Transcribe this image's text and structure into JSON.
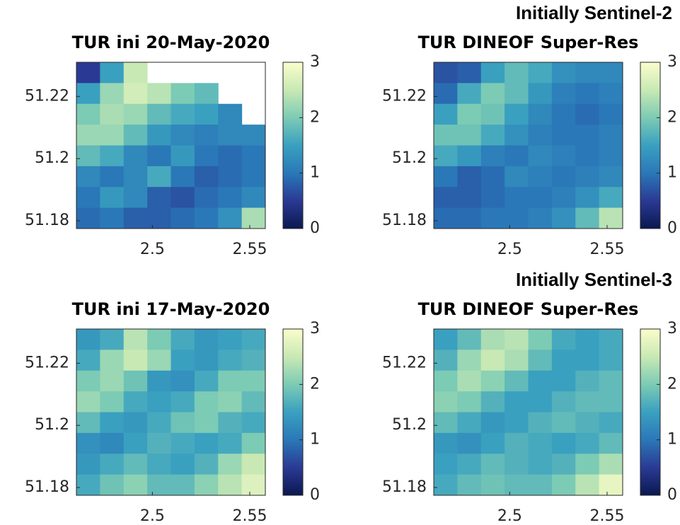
{
  "chart_data": [
    {
      "type": "heatmap",
      "title": "TUR ini 20-May-2020",
      "xlim": [
        2.461,
        2.558
      ],
      "ylim": [
        51.1775,
        51.231
      ],
      "xticks": [
        2.5,
        2.55
      ],
      "yticks": [
        51.18,
        51.2,
        51.22
      ],
      "clim": [
        0,
        3
      ],
      "cticks": [
        0,
        1,
        2,
        3
      ],
      "colormap": [
        "#0b1850",
        "#2a3a94",
        "#2a78b8",
        "#3aa0c0",
        "#7ccbb4",
        "#c8e9b4",
        "#fbfdcc"
      ],
      "values": [
        [
          0.5,
          1.5,
          2.5,
          null,
          null,
          null,
          null,
          null
        ],
        [
          1.5,
          2.2,
          2.6,
          2.4,
          2.0,
          1.8,
          null,
          null
        ],
        [
          2.0,
          2.3,
          2.2,
          1.8,
          1.6,
          1.5,
          1.2,
          null
        ],
        [
          2.2,
          2.2,
          1.8,
          1.4,
          1.2,
          1.1,
          1.2,
          1.2
        ],
        [
          1.8,
          1.6,
          1.2,
          1.0,
          1.4,
          1.0,
          0.9,
          1.0
        ],
        [
          1.2,
          1.0,
          1.2,
          1.6,
          1.0,
          0.8,
          0.9,
          1.0
        ],
        [
          1.0,
          1.4,
          1.2,
          0.8,
          0.7,
          0.9,
          1.0,
          1.2
        ],
        [
          0.9,
          1.0,
          0.8,
          0.8,
          0.9,
          1.0,
          1.3,
          2.3
        ]
      ]
    },
    {
      "type": "heatmap",
      "title": "TUR DINEOF Super-Res",
      "annotation": "Initially Sentinel-2",
      "xlim": [
        2.461,
        2.558
      ],
      "ylim": [
        51.1775,
        51.231
      ],
      "xticks": [
        2.5,
        2.55
      ],
      "yticks": [
        51.18,
        51.2,
        51.22
      ],
      "clim": [
        0,
        3
      ],
      "cticks": [
        0,
        1,
        2,
        3
      ],
      "colormap": [
        "#0b1850",
        "#2a3a94",
        "#2a78b8",
        "#3aa0c0",
        "#7ccbb4",
        "#c8e9b4",
        "#fbfdcc"
      ],
      "values": [
        [
          0.7,
          0.8,
          1.5,
          1.8,
          1.6,
          1.3,
          1.2,
          1.2
        ],
        [
          0.9,
          1.6,
          2.0,
          1.8,
          1.4,
          1.1,
          1.0,
          1.1
        ],
        [
          1.5,
          2.0,
          1.9,
          1.5,
          1.2,
          1.0,
          0.9,
          1.0
        ],
        [
          1.9,
          1.9,
          1.6,
          1.3,
          1.1,
          1.0,
          1.0,
          1.1
        ],
        [
          1.6,
          1.4,
          1.1,
          1.0,
          1.2,
          1.1,
          1.0,
          1.1
        ],
        [
          1.0,
          0.8,
          0.9,
          1.2,
          1.1,
          1.0,
          1.1,
          1.2
        ],
        [
          0.8,
          0.8,
          0.9,
          1.0,
          1.0,
          1.1,
          1.3,
          1.6
        ],
        [
          0.9,
          0.9,
          1.0,
          1.0,
          1.1,
          1.3,
          1.8,
          2.4
        ]
      ]
    },
    {
      "type": "heatmap",
      "title": "TUR ini 17-May-2020",
      "xlim": [
        2.461,
        2.558
      ],
      "ylim": [
        51.1775,
        51.231
      ],
      "xticks": [
        2.5,
        2.55
      ],
      "yticks": [
        51.18,
        51.2,
        51.22
      ],
      "clim": [
        0,
        3
      ],
      "cticks": [
        0,
        1,
        2,
        3
      ],
      "colormap": [
        "#0b1850",
        "#2a3a94",
        "#2a78b8",
        "#3aa0c0",
        "#7ccbb4",
        "#c8e9b4",
        "#fbfdcc"
      ],
      "values": [
        [
          1.4,
          1.6,
          2.4,
          2.0,
          1.6,
          1.4,
          1.5,
          1.6
        ],
        [
          1.6,
          2.2,
          2.5,
          2.2,
          1.5,
          1.4,
          1.6,
          1.7
        ],
        [
          2.0,
          2.2,
          1.9,
          1.4,
          1.3,
          1.6,
          2.0,
          2.0
        ],
        [
          2.2,
          2.0,
          1.6,
          1.5,
          1.6,
          2.0,
          2.1,
          1.8
        ],
        [
          1.8,
          1.5,
          1.4,
          1.6,
          1.9,
          2.0,
          1.7,
          1.6
        ],
        [
          1.3,
          1.2,
          1.5,
          1.7,
          1.6,
          1.5,
          1.6,
          2.0
        ],
        [
          1.4,
          1.6,
          1.8,
          1.6,
          1.5,
          1.7,
          2.2,
          2.5
        ],
        [
          1.6,
          1.9,
          2.1,
          1.8,
          1.8,
          2.1,
          2.4,
          2.7
        ]
      ]
    },
    {
      "type": "heatmap",
      "title": "TUR DINEOF Super-Res",
      "annotation": "Initially Sentinel-3",
      "xlim": [
        2.461,
        2.558
      ],
      "ylim": [
        51.1775,
        51.231
      ],
      "xticks": [
        2.5,
        2.55
      ],
      "yticks": [
        51.18,
        51.2,
        51.22
      ],
      "clim": [
        0,
        3
      ],
      "cticks": [
        0,
        1,
        2,
        3
      ],
      "colormap": [
        "#0b1850",
        "#2a3a94",
        "#2a78b8",
        "#3aa0c0",
        "#7ccbb4",
        "#c8e9b4",
        "#fbfdcc"
      ],
      "values": [
        [
          1.5,
          1.8,
          2.3,
          2.4,
          2.0,
          1.6,
          1.5,
          1.6
        ],
        [
          1.7,
          2.2,
          2.5,
          2.3,
          1.8,
          1.5,
          1.5,
          1.6
        ],
        [
          2.0,
          2.3,
          2.1,
          1.8,
          1.5,
          1.5,
          1.7,
          1.8
        ],
        [
          2.1,
          2.0,
          1.7,
          1.5,
          1.5,
          1.7,
          1.8,
          1.8
        ],
        [
          1.8,
          1.6,
          1.4,
          1.5,
          1.7,
          1.8,
          1.7,
          1.6
        ],
        [
          1.4,
          1.3,
          1.5,
          1.7,
          1.6,
          1.5,
          1.6,
          1.8
        ],
        [
          1.5,
          1.6,
          1.8,
          1.7,
          1.6,
          1.7,
          2.0,
          2.3
        ],
        [
          1.6,
          1.8,
          1.9,
          1.8,
          1.8,
          2.0,
          2.4,
          2.8
        ]
      ]
    }
  ]
}
